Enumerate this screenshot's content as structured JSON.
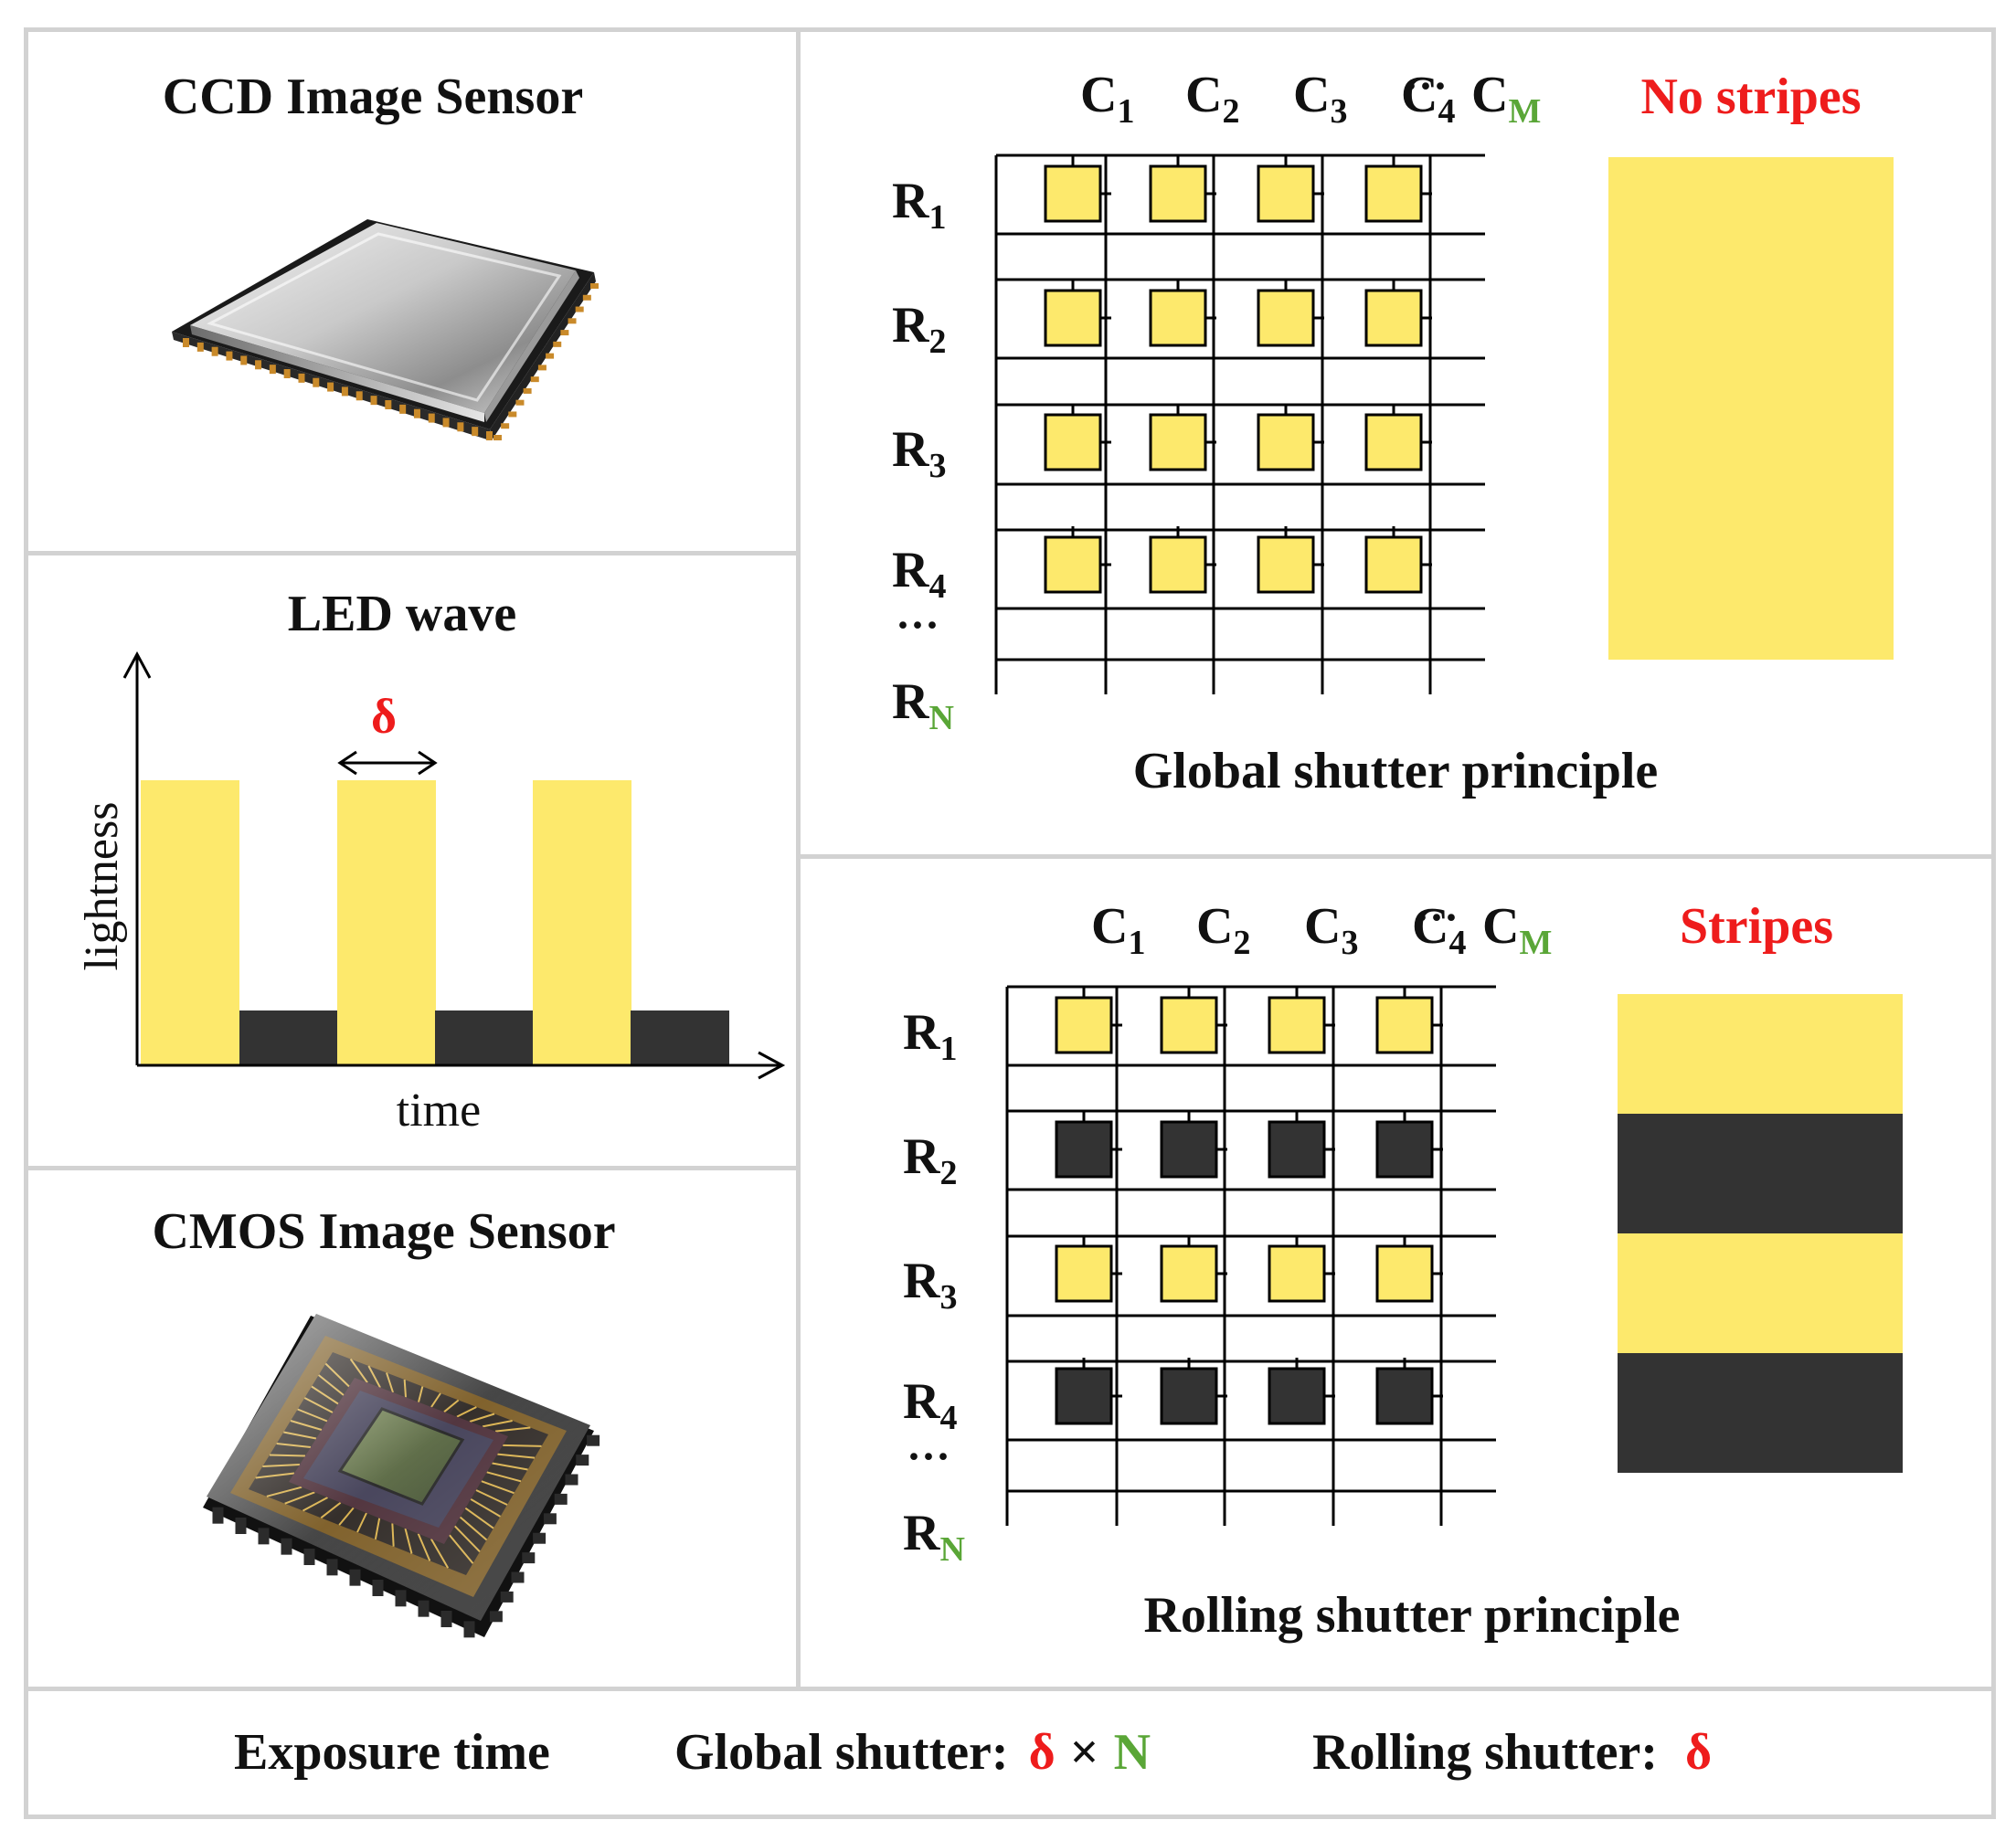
{
  "ccd": {
    "title": "CCD Image Sensor"
  },
  "led": {
    "title": "LED wave",
    "delta": "δ",
    "ylabel": "lightness",
    "xlabel": "time"
  },
  "cmos": {
    "title": "CMOS Image Sensor"
  },
  "global": {
    "columns": [
      [
        "C",
        "1"
      ],
      [
        "C",
        "2"
      ],
      [
        "C",
        "3"
      ],
      [
        "C",
        "4"
      ]
    ],
    "col_ellipsis": "···",
    "col_last": [
      "C",
      "M"
    ],
    "rows": [
      [
        "R",
        "1"
      ],
      [
        "R",
        "2"
      ],
      [
        "R",
        "3"
      ],
      [
        "R",
        "4"
      ]
    ],
    "row_ellipsis": "···",
    "row_last": [
      "R",
      "N"
    ],
    "result": "No stripes",
    "caption": "Global shutter principle",
    "row_states": [
      "lit",
      "lit",
      "lit",
      "lit"
    ]
  },
  "rolling": {
    "columns": [
      [
        "C",
        "1"
      ],
      [
        "C",
        "2"
      ],
      [
        "C",
        "3"
      ],
      [
        "C",
        "4"
      ]
    ],
    "col_ellipsis": "···",
    "col_last": [
      "C",
      "M"
    ],
    "rows": [
      [
        "R",
        "1"
      ],
      [
        "R",
        "2"
      ],
      [
        "R",
        "3"
      ],
      [
        "R",
        "4"
      ]
    ],
    "row_ellipsis": "···",
    "row_last": [
      "R",
      "N"
    ],
    "result": "Stripes",
    "caption": "Rolling shutter principle",
    "row_states": [
      "lit",
      "dark",
      "lit",
      "dark"
    ]
  },
  "exposure": {
    "label": "Exposure time",
    "global_label": "Global shutter:",
    "global_delta": "δ",
    "global_times": "×",
    "global_n": "N",
    "rolling_label": "Rolling shutter:",
    "rolling_delta": "δ"
  },
  "colors": {
    "yellow": "#fde96c",
    "dark": "#333333",
    "red": "#ee1c1c",
    "green": "#5aa637",
    "border": "#d2d2d2"
  }
}
